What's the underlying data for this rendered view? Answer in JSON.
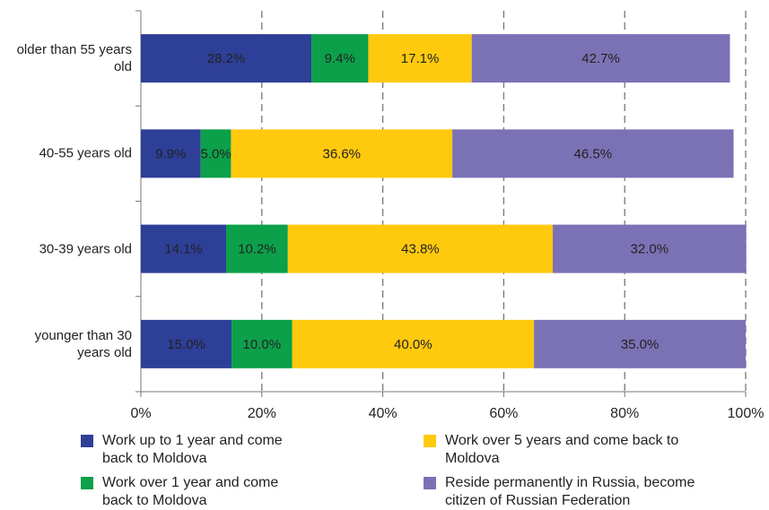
{
  "chart_data": {
    "type": "stacked-bar-horizontal",
    "categories": [
      "older than 55 years old",
      "40-55 years old",
      "30-39 years old",
      "younger than 30 years old"
    ],
    "series": [
      {
        "name": "Work up to 1 year and come back to Moldova",
        "color": "#2e3f98",
        "values": [
          28.2,
          9.9,
          14.1,
          15.0
        ],
        "value_labels": [
          "28.2%",
          "9.9%",
          "14.1%",
          "15.0%"
        ]
      },
      {
        "name": "Work over 1 year and come back to Moldova",
        "color": "#0ca04a",
        "values": [
          9.4,
          5.0,
          10.2,
          10.0
        ],
        "value_labels": [
          "9.4%",
          "5.0%",
          "10.2%",
          "10.0%"
        ]
      },
      {
        "name": "Work over 5 years and come back to Moldova",
        "color": "#ffc90e",
        "values": [
          17.1,
          36.6,
          43.8,
          40.0
        ],
        "value_labels": [
          "17.1%",
          "36.6%",
          "43.8%",
          "40.0%"
        ]
      },
      {
        "name": "Reside permanently in Russia, become citizen of Russian Federation",
        "color": "#7b72b5",
        "values": [
          42.7,
          46.5,
          32.0,
          35.0
        ],
        "value_labels": [
          "42.7%",
          "46.5%",
          "32.0%",
          "35.0%"
        ]
      }
    ],
    "xlim": [
      0,
      100
    ],
    "xticks": [
      {
        "value": 0,
        "label": "0%"
      },
      {
        "value": 20,
        "label": "20%"
      },
      {
        "value": 40,
        "label": "40%"
      },
      {
        "value": 60,
        "label": "60%"
      },
      {
        "value": 80,
        "label": "80%"
      },
      {
        "value": 100,
        "label": "100%"
      }
    ],
    "grid": true,
    "legend": "bottom"
  }
}
